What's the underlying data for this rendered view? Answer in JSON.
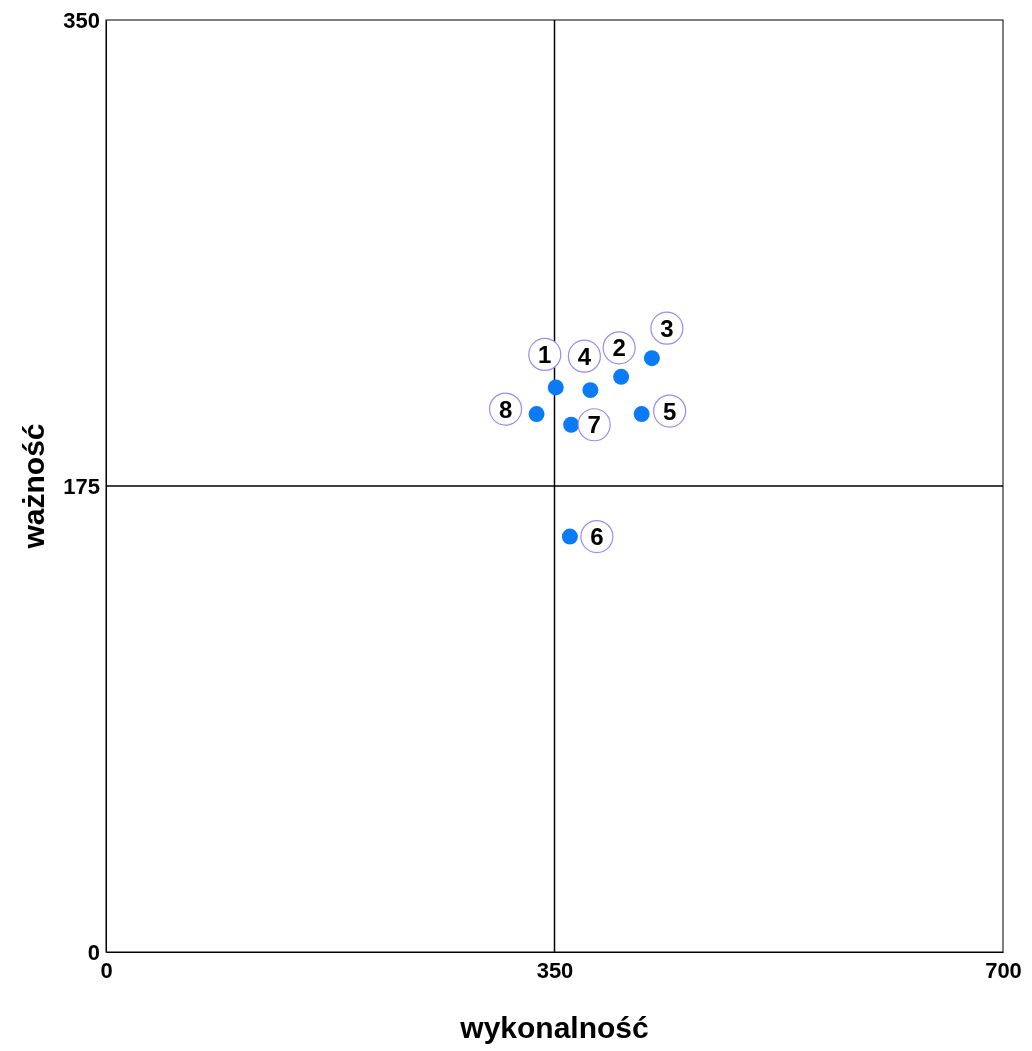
{
  "chart_data": {
    "type": "scatter",
    "xlabel": "wykonalność",
    "ylabel": "ważność",
    "xlim": [
      0,
      700
    ],
    "ylim": [
      0,
      350
    ],
    "xticks": [
      0,
      350,
      700
    ],
    "yticks": [
      0,
      175,
      350
    ],
    "marker": "circle",
    "grid": false,
    "series": [
      {
        "color": "#0a7af5",
        "x": [
          351,
          402,
          426,
          378,
          418,
          362,
          363,
          336
        ],
        "values": [
          212,
          216,
          223,
          211,
          202,
          156,
          198,
          202
        ]
      }
    ],
    "ref_lines": [
      {
        "axis": "x",
        "value": 350
      },
      {
        "axis": "y",
        "value": 175
      }
    ],
    "annotations": [
      {
        "text": "1",
        "x": 351,
        "y": 212
      },
      {
        "text": "2",
        "x": 402,
        "y": 216
      },
      {
        "text": "3",
        "x": 426,
        "y": 223
      },
      {
        "text": "4",
        "x": 378,
        "y": 211
      },
      {
        "text": "5",
        "x": 418,
        "y": 202
      },
      {
        "text": "6",
        "x": 362,
        "y": 156
      },
      {
        "text": "7",
        "x": 363,
        "y": 198
      },
      {
        "text": "8",
        "x": 336,
        "y": 202
      }
    ]
  }
}
